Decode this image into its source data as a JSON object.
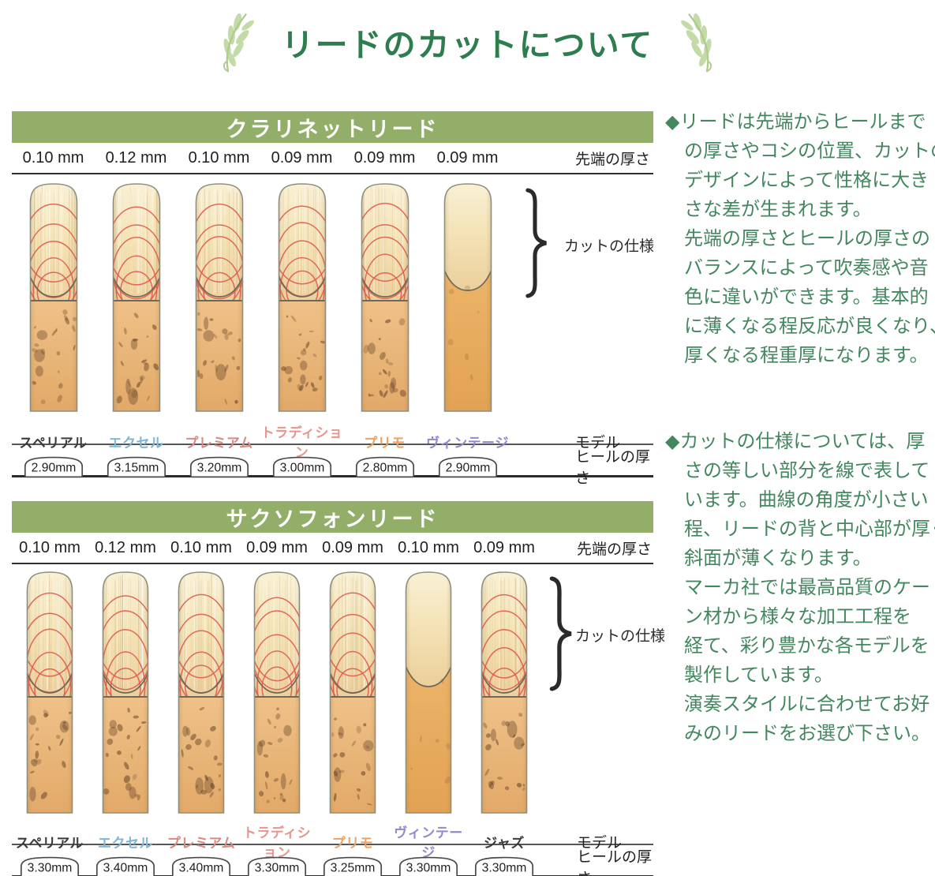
{
  "header": {
    "title": "リードのカットについて"
  },
  "colors": {
    "title_green": "#2e7d4e",
    "bar_green": "#93ae68",
    "note_green": "#43875f",
    "arc_red": "#e05a4b",
    "leaf_green": "#c3dba6"
  },
  "sections": [
    {
      "title": "クラリネットリード",
      "tip_label": "先端の厚さ",
      "cut_label": "カットの仕様",
      "model_label": "モデル",
      "heel_label": "ヒールの厚さ",
      "reeds": [
        {
          "tip": "0.10 mm",
          "model": "スペリアル",
          "color": "#3b3b3b",
          "heel": "2.90mm"
        },
        {
          "tip": "0.12 mm",
          "model": "エクセル",
          "color": "#7eb6d9",
          "heel": "3.15mm"
        },
        {
          "tip": "0.10 mm",
          "model": "プレミアム",
          "color": "#d98a80",
          "heel": "3.20mm"
        },
        {
          "tip": "0.09 mm",
          "model": "トラディション",
          "color": "#e8958c",
          "heel": "3.00mm"
        },
        {
          "tip": "0.09 mm",
          "model": "プリモ",
          "color": "#eda263",
          "heel": "2.80mm"
        },
        {
          "tip": "0.09 mm",
          "model": "ヴィンテージ",
          "color": "#9388ce",
          "heel": "2.90mm"
        }
      ]
    },
    {
      "title": "サクソフォンリード",
      "tip_label": "先端の厚さ",
      "cut_label": "カットの仕様",
      "model_label": "モデル",
      "heel_label": "ヒールの厚さ",
      "reeds": [
        {
          "tip": "0.10 mm",
          "model": "スペリアル",
          "color": "#3b3b3b",
          "heel": "3.30mm"
        },
        {
          "tip": "0.12 mm",
          "model": "エクセル",
          "color": "#7eb6d9",
          "heel": "3.40mm"
        },
        {
          "tip": "0.10 mm",
          "model": "プレミアム",
          "color": "#d98a80",
          "heel": "3.40mm"
        },
        {
          "tip": "0.09 mm",
          "model": "トラディション",
          "color": "#e8958c",
          "heel": "3.30mm"
        },
        {
          "tip": "0.09 mm",
          "model": "プリモ",
          "color": "#eda263",
          "heel": "3.25mm"
        },
        {
          "tip": "0.10 mm",
          "model": "ヴィンテージ",
          "color": "#9388ce",
          "heel": "3.30mm"
        },
        {
          "tip": "0.09 mm",
          "model": "ジャズ",
          "color": "#3b3b3b",
          "heel": "3.30mm"
        }
      ]
    }
  ],
  "notes": [
    {
      "text": "◆リードは先端からヒールまで\nの厚さやコシの位置、カットの\nデザインによって性格に大き\nさな差が生まれます。\n先端の厚さとヒールの厚さの\nバランスによって吹奏感や音\n色に違いができます。基本的\nに薄くなる程反応が良くなり、\n厚くなる程重厚になります。"
    },
    {
      "text": "◆カットの仕様については、厚\nさの等しい部分を線で表して\nいます。曲線の角度が小さい\n程、リードの背と中心部が厚く\n斜面が薄くなります。\nマーカ社では最高品質のケー\nン材から様々な加工工程を\n経て、彩り豊かな各モデルを\n製作しています。\n演奏スタイルに合わせてお好\nみのリードをお選び下さい。"
    }
  ]
}
